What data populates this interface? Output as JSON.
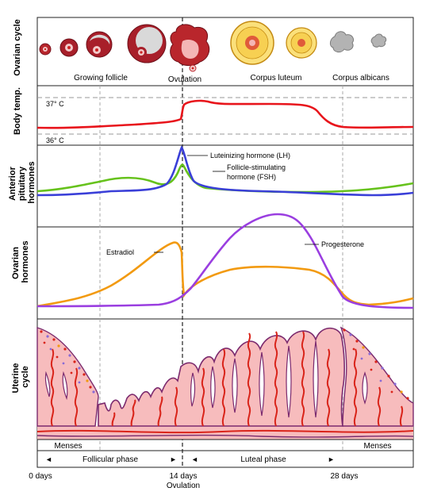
{
  "rows": {
    "ovarian_cycle": "Ovarian cycle",
    "body_temp": "Body temp.",
    "anterior_pituitary": "Anterior pituitary hormones",
    "ovarian_hormones": "Ovarian hormones",
    "uterine_cycle": "Uterine cycle"
  },
  "stages": {
    "growing_follicle": "Growing follicle",
    "ovulation": "Ovulation",
    "corpus_luteum": "Corpus luteum",
    "corpus_albicans": "Corpus albicans"
  },
  "temperature": {
    "high": "37° C",
    "low": "36° C"
  },
  "hormones": {
    "lh": "Luteinizing hormone (LH)",
    "fsh_line1": "Follicle-stimulating",
    "fsh_line2": "hormone (FSH)",
    "estradiol": "Estradiol",
    "progesterone": "Progesterone"
  },
  "phases": {
    "menses_left": "Menses",
    "menses_right": "Menses",
    "follicular": "Follicular phase",
    "luteal": "Luteal phase"
  },
  "axis": {
    "day0": "0 days",
    "day14": "14 days",
    "day14_sub": "Ovulation",
    "day28": "28 days"
  },
  "colors": {
    "temperature": "#e8141b",
    "lh": "#3a3fd8",
    "fsh": "#66c21c",
    "estradiol": "#f29a10",
    "progesterone": "#9a3ee0",
    "endometrium": "#f7bcbd",
    "endometrium_edge": "#7b2a6e",
    "vessels": "#d9241a"
  }
}
